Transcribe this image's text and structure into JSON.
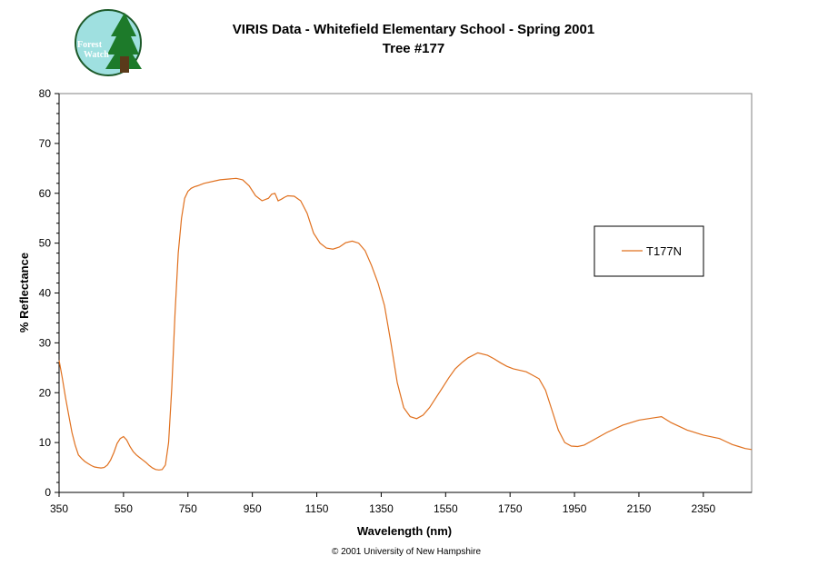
{
  "logo": {
    "line1": "Forest",
    "line2": "Watch",
    "colors": {
      "circle": "#9fe0e0",
      "tree": "#1d7a2a",
      "trunk": "#5a3a1a"
    }
  },
  "copyright": "© 2001 University of New Hampshire",
  "colors": {
    "series": "#e0701e",
    "axis": "#000000"
  },
  "chart_data": {
    "type": "line",
    "title": "VIRIS Data - Whitefield Elementary School - Spring 2001",
    "subtitle": "Tree #177",
    "xlabel": "Wavelength (nm)",
    "ylabel": "% Reflectance",
    "xlim": [
      350,
      2500
    ],
    "ylim": [
      0,
      80
    ],
    "xticks": [
      "350",
      "550",
      "750",
      "950",
      "1150",
      "1350",
      "1550",
      "1750",
      "1950",
      "2150",
      "2350"
    ],
    "yticks": [
      "0",
      "10",
      "20",
      "30",
      "40",
      "50",
      "60",
      "70",
      "80"
    ],
    "grid": false,
    "legend_position": "right",
    "series": [
      {
        "name": "T177N",
        "color": "#e0701e",
        "x": [
          350,
          360,
          370,
          380,
          390,
          400,
          410,
          420,
          430,
          440,
          450,
          460,
          470,
          480,
          490,
          500,
          510,
          520,
          530,
          540,
          550,
          560,
          570,
          580,
          590,
          600,
          610,
          620,
          630,
          640,
          650,
          660,
          670,
          680,
          690,
          700,
          710,
          720,
          730,
          740,
          750,
          760,
          770,
          780,
          800,
          850,
          900,
          920,
          940,
          960,
          980,
          1000,
          1010,
          1020,
          1030,
          1040,
          1050,
          1060,
          1080,
          1100,
          1120,
          1140,
          1160,
          1180,
          1200,
          1220,
          1240,
          1260,
          1280,
          1300,
          1320,
          1340,
          1360,
          1380,
          1400,
          1420,
          1440,
          1460,
          1480,
          1500,
          1520,
          1540,
          1560,
          1580,
          1600,
          1620,
          1650,
          1680,
          1700,
          1720,
          1740,
          1760,
          1780,
          1800,
          1820,
          1840,
          1860,
          1880,
          1900,
          1920,
          1940,
          1960,
          1980,
          2000,
          2050,
          2100,
          2150,
          2200,
          2220,
          2250,
          2300,
          2350,
          2400,
          2420,
          2440,
          2460,
          2480,
          2500
        ],
        "y": [
          26.5,
          23,
          19,
          15.5,
          12,
          9.5,
          7.5,
          6.8,
          6.2,
          5.8,
          5.4,
          5.1,
          5.0,
          4.9,
          5.0,
          5.5,
          6.5,
          8,
          9.8,
          10.8,
          11.2,
          10.5,
          9.2,
          8.2,
          7.5,
          7.0,
          6.5,
          6.0,
          5.4,
          4.9,
          4.6,
          4.5,
          4.6,
          5.5,
          10,
          21,
          36,
          48,
          55,
          59,
          60.4,
          61,
          61.3,
          61.5,
          62,
          62.7,
          63,
          62.7,
          61.5,
          59.5,
          58.5,
          59,
          59.8,
          60,
          58.5,
          58.8,
          59.2,
          59.5,
          59.4,
          58.5,
          56,
          52,
          50,
          49,
          48.8,
          49.2,
          50.1,
          50.4,
          50,
          48.5,
          45.5,
          42,
          37.5,
          30,
          22,
          17,
          15.2,
          14.8,
          15.5,
          17,
          19,
          21,
          23,
          24.8,
          26,
          27,
          28,
          27.5,
          26.8,
          26,
          25.3,
          24.8,
          24.5,
          24.2,
          23.5,
          22.8,
          20.5,
          16.5,
          12.5,
          10,
          9.3,
          9.2,
          9.5,
          10.2,
          12,
          13.5,
          14.5,
          15,
          15.2,
          14,
          12.5,
          11.5,
          10.8,
          10.2,
          9.6,
          9.2,
          8.8,
          8.6
        ]
      }
    ]
  }
}
